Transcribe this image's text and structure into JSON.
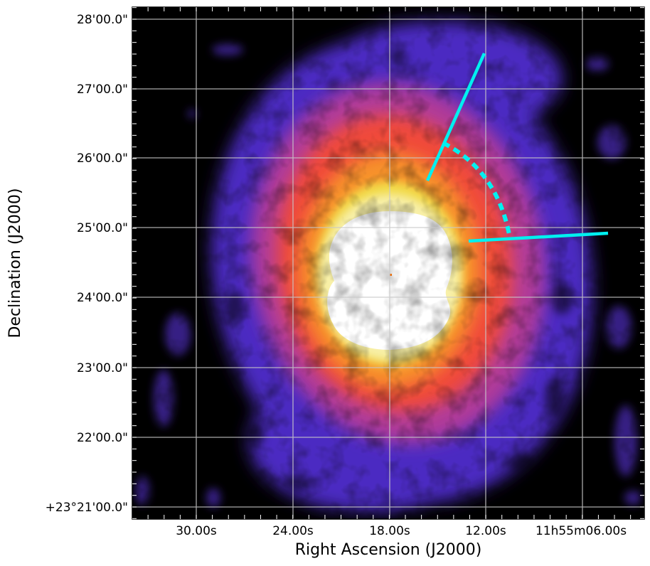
{
  "axes": {
    "x_title": "Right Ascension (J2000)",
    "y_title": "Declination (J2000)",
    "x_ticks": [
      "30.00s",
      "24.00s",
      "18.00s",
      "12.00s",
      "11h55m06.00s"
    ],
    "y_ticks": [
      "28'00.0\"",
      "27'00.0\"",
      "26'00.0\"",
      "25'00.0\"",
      "24'00.0\"",
      "23'00.0\"",
      "22'00.0\"",
      "+23°21'00.0\""
    ]
  },
  "image": {
    "colormap": "black-purple-red-orange-yellow-white",
    "background_color": "#000000",
    "grid_color": "#c8c8c8",
    "overlay_color": "#00f0f0"
  },
  "annotations": {
    "lines": [
      "solid-line-upper",
      "solid-line-lower",
      "dashed-arc"
    ],
    "center_marker": "point-source-marker"
  }
}
